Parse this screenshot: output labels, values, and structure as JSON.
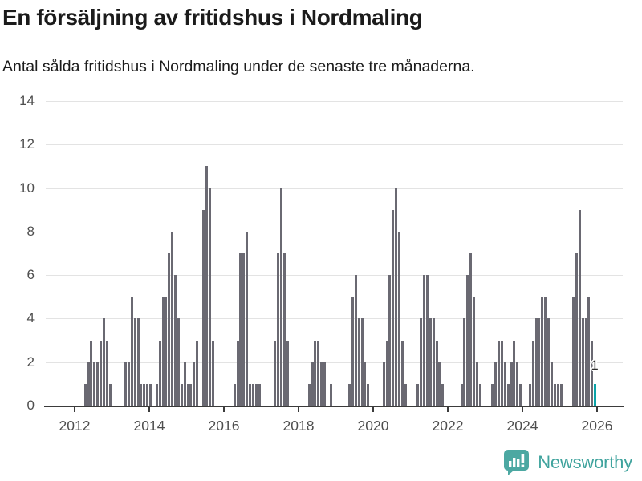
{
  "title": "En försäljning av fritidshus i Nordmaling",
  "subtitle": "Antal sålda fritidshus i Nordmaling under de senaste tre månaderna.",
  "footer": {
    "brand": "Newsworthy"
  },
  "colors": {
    "bar": "#6A6972",
    "highlight_bar": "#0BA3A8",
    "gridline": "#E3E3E3",
    "axis_line": "#3B3B3B",
    "axis_label": "#4E4E4E",
    "title_text": "#1B1B1B",
    "brand_teal": "#3FA39D",
    "logo_bubble": "#4CA8A2",
    "background": "#FFFFFF"
  },
  "chart_data": {
    "type": "bar",
    "title": "En försäljning av fritidshus i Nordmaling",
    "subtitle": "Antal sålda fritidshus i Nordmaling under de senaste tre månaderna.",
    "xlabel": "",
    "ylabel": "",
    "ylim": [
      0,
      14
    ],
    "y_ticks": [
      0,
      2,
      4,
      6,
      8,
      10,
      12,
      14
    ],
    "x_tick_labels": [
      "2012",
      "2014",
      "2016",
      "2018",
      "2020",
      "2022",
      "2024",
      "2026"
    ],
    "grid": "horizontal",
    "legend": "none",
    "frequency": "monthly",
    "start_month": "2012-01",
    "monthly_values": {
      "2012": [
        0,
        0,
        0,
        1,
        2,
        3,
        2,
        2,
        3,
        4,
        3,
        1
      ],
      "2013": [
        0,
        0,
        0,
        0,
        2,
        2,
        5,
        4,
        4,
        1,
        1,
        1
      ],
      "2014": [
        1,
        0,
        1,
        3,
        5,
        5,
        7,
        8,
        6,
        4,
        1,
        2
      ],
      "2015": [
        1,
        1,
        2,
        3,
        0,
        9,
        11,
        10,
        3,
        0,
        0,
        0
      ],
      "2016": [
        0,
        0,
        0,
        1,
        3,
        7,
        7,
        8,
        1,
        1,
        1,
        1
      ],
      "2017": [
        0,
        0,
        0,
        0,
        3,
        7,
        10,
        7,
        3,
        0,
        0,
        0
      ],
      "2018": [
        0,
        0,
        0,
        1,
        2,
        3,
        3,
        2,
        2,
        0,
        1,
        0
      ],
      "2019": [
        0,
        0,
        0,
        0,
        1,
        5,
        6,
        4,
        4,
        2,
        1,
        0
      ],
      "2020": [
        0,
        0,
        0,
        2,
        3,
        6,
        9,
        10,
        8,
        3,
        1,
        0
      ],
      "2021": [
        0,
        0,
        1,
        4,
        6,
        6,
        4,
        4,
        3,
        2,
        1,
        0
      ],
      "2022": [
        0,
        0,
        0,
        0,
        1,
        4,
        6,
        7,
        5,
        2,
        1,
        0
      ],
      "2023": [
        0,
        0,
        1,
        2,
        3,
        3,
        2,
        1,
        2,
        3,
        2,
        1
      ],
      "2024": [
        0,
        0,
        1,
        3,
        4,
        4,
        5,
        5,
        4,
        2,
        1,
        1
      ],
      "2025": [
        1,
        0,
        0,
        0,
        5,
        7,
        9,
        4,
        4,
        5,
        3,
        1
      ]
    },
    "highlight_last_bar": true,
    "last_value_label": "1"
  }
}
